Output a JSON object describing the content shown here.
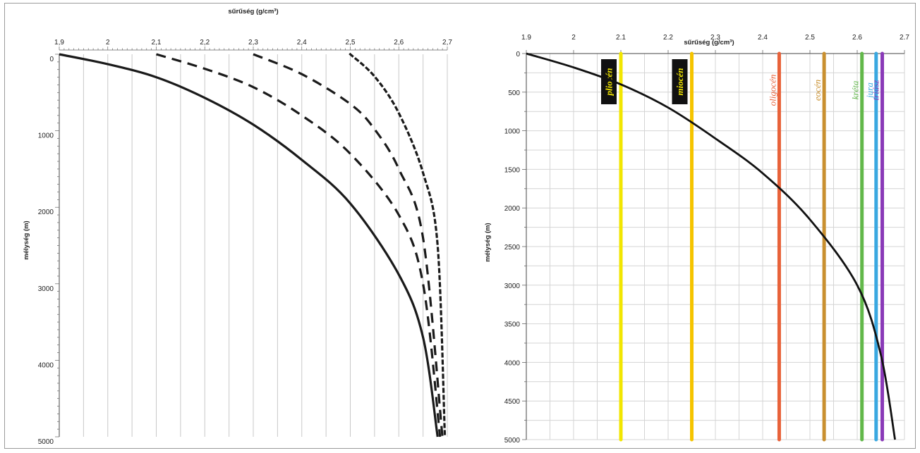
{
  "chart_data": [
    {
      "type": "line",
      "title": "sűrűség (g/cm³)",
      "xlabel": "sűrűség (g/cm³)",
      "ylabel": "mélység (m)",
      "xlim": [
        1.9,
        2.7
      ],
      "ylim": [
        0,
        5000
      ],
      "y_inverted": true,
      "x_ticks": [
        "1,9",
        "2",
        "2,1",
        "2,2",
        "2,3",
        "2,4",
        "2,5",
        "2,6",
        "2,7"
      ],
      "y_ticks": [
        "0",
        "1000",
        "2000",
        "3000",
        "4000",
        "5000"
      ],
      "x_tick_values": [
        1.9,
        2.0,
        2.1,
        2.2,
        2.3,
        2.4,
        2.5,
        2.6,
        2.7
      ],
      "y_tick_values": [
        0,
        1000,
        2000,
        3000,
        4000,
        5000
      ],
      "grid": "vertical",
      "series": [
        {
          "style": "solid",
          "x": [
            1.9,
            2.0,
            2.1,
            2.2,
            2.3,
            2.4,
            2.5,
            2.6,
            2.65,
            2.68
          ],
          "y": [
            0,
            130,
            300,
            570,
            920,
            1380,
            1950,
            2880,
            3700,
            5000
          ]
        },
        {
          "style": "dashed",
          "x": [
            2.1,
            2.2,
            2.3,
            2.4,
            2.5,
            2.6,
            2.65,
            2.685
          ],
          "y": [
            0,
            190,
            430,
            800,
            1300,
            2100,
            3000,
            5000
          ]
        },
        {
          "style": "dashed",
          "x": [
            2.3,
            2.4,
            2.5,
            2.55,
            2.6,
            2.65,
            2.69
          ],
          "y": [
            0,
            260,
            650,
            980,
            1500,
            2400,
            5000
          ]
        },
        {
          "style": "dotted",
          "x": [
            2.5,
            2.55,
            2.6,
            2.65,
            2.68,
            2.695
          ],
          "y": [
            0,
            290,
            770,
            1550,
            2500,
            5000
          ]
        }
      ]
    },
    {
      "type": "line",
      "title": "sűrűség (g/cm³)",
      "xlabel": "sűrűség (g/cm³)",
      "ylabel": "mélység (m)",
      "xlim": [
        1.9,
        2.7
      ],
      "ylim": [
        0,
        5000
      ],
      "y_inverted": true,
      "x_ticks": [
        "1.9",
        "2",
        "2.1",
        "2.2",
        "2.3",
        "2.4",
        "2.5",
        "2.6",
        "2.7"
      ],
      "y_ticks": [
        "0",
        "500",
        "1000",
        "1500",
        "2000",
        "2500",
        "3000",
        "3500",
        "4000",
        "4500",
        "5000"
      ],
      "x_tick_values": [
        1.9,
        2.0,
        2.1,
        2.2,
        2.3,
        2.4,
        2.5,
        2.6,
        2.7
      ],
      "y_tick_values": [
        0,
        500,
        1000,
        1500,
        2000,
        2500,
        3000,
        3500,
        4000,
        4500,
        5000
      ],
      "grid": "both",
      "series": [
        {
          "style": "solid",
          "x": [
            1.9,
            2.0,
            2.1,
            2.2,
            2.3,
            2.4,
            2.5,
            2.6,
            2.65,
            2.68
          ],
          "y": [
            0,
            180,
            400,
            700,
            1100,
            1550,
            2150,
            3000,
            3900,
            5000
          ]
        }
      ],
      "reference_lines": [
        {
          "label": "pliocén",
          "x": 2.1,
          "color": "#f2e600",
          "boxed": true
        },
        {
          "label": "miocén",
          "x": 2.25,
          "color": "#f5c400",
          "boxed": true
        },
        {
          "label": "oligocén",
          "x": 2.435,
          "color": "#e8623a",
          "boxed": false
        },
        {
          "label": "eocén",
          "x": 2.53,
          "color": "#c99030",
          "boxed": false
        },
        {
          "label": "kréta",
          "x": 2.61,
          "color": "#62b84a",
          "boxed": false
        },
        {
          "label": "jura",
          "x": 2.64,
          "color": "#3aa8e0",
          "boxed": false
        },
        {
          "label": "triász",
          "x": 2.653,
          "color": "#8a3ab8",
          "boxed": false
        }
      ]
    }
  ]
}
